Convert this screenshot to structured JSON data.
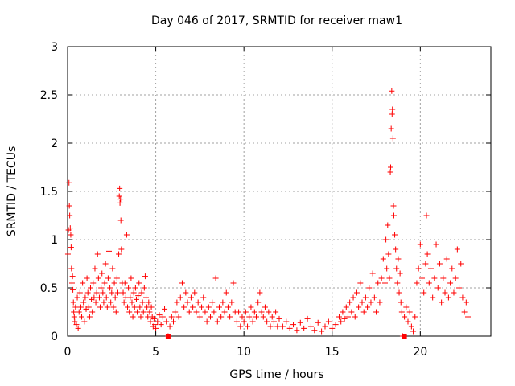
{
  "chart_data": {
    "type": "scatter",
    "title": "Day 046 of 2017, SRMTID for receiver maw1",
    "xlabel": "GPS time / hours",
    "ylabel": "SRMTID / TECUs",
    "xlim": [
      0,
      24
    ],
    "ylim": [
      0,
      3
    ],
    "xticks": [
      0,
      5,
      10,
      15,
      20
    ],
    "yticks": [
      0,
      0.5,
      1,
      1.5,
      2,
      2.5,
      3
    ],
    "ytick_labels": [
      "0",
      "0.5",
      "1",
      "1.5",
      "2",
      "2.5",
      "3"
    ],
    "grid": true,
    "marker": "+",
    "color": "#ff0000",
    "series": [
      {
        "name": "SRMTID",
        "points": [
          [
            0.02,
            0.85
          ],
          [
            0.05,
            1.1
          ],
          [
            0.08,
            1.59
          ],
          [
            0.1,
            1.35
          ],
          [
            0.12,
            1.25
          ],
          [
            0.15,
            1.12
          ],
          [
            0.18,
            1.05
          ],
          [
            0.2,
            0.92
          ],
          [
            0.22,
            0.7
          ],
          [
            0.25,
            0.55
          ],
          [
            0.28,
            0.62
          ],
          [
            0.3,
            0.48
          ],
          [
            0.33,
            0.35
          ],
          [
            0.35,
            0.25
          ],
          [
            0.38,
            0.2
          ],
          [
            0.4,
            0.15
          ],
          [
            0.45,
            0.3
          ],
          [
            0.5,
            0.12
          ],
          [
            0.55,
            0.4
          ],
          [
            0.6,
            0.08
          ],
          [
            0.65,
            0.25
          ],
          [
            0.7,
            0.45
          ],
          [
            0.75,
            0.3
          ],
          [
            0.8,
            0.2
          ],
          [
            0.85,
            0.55
          ],
          [
            0.9,
            0.35
          ],
          [
            0.95,
            0.15
          ],
          [
            1.0,
            0.4
          ],
          [
            1.05,
            0.28
          ],
          [
            1.1,
            0.6
          ],
          [
            1.15,
            0.45
          ],
          [
            1.2,
            0.3
          ],
          [
            1.25,
            0.2
          ],
          [
            1.3,
            0.5
          ],
          [
            1.35,
            0.38
          ],
          [
            1.4,
            0.25
          ],
          [
            1.45,
            0.55
          ],
          [
            1.5,
            0.4
          ],
          [
            1.55,
            0.7
          ],
          [
            1.6,
            0.35
          ],
          [
            1.65,
            0.45
          ],
          [
            1.7,
            0.85
          ],
          [
            1.75,
            0.6
          ],
          [
            1.8,
            0.4
          ],
          [
            1.85,
            0.3
          ],
          [
            1.9,
            0.5
          ],
          [
            1.95,
            0.65
          ],
          [
            2.0,
            0.45
          ],
          [
            2.05,
            0.35
          ],
          [
            2.1,
            0.55
          ],
          [
            2.15,
            0.75
          ],
          [
            2.2,
            0.4
          ],
          [
            2.25,
            0.3
          ],
          [
            2.3,
            0.6
          ],
          [
            2.35,
            0.88
          ],
          [
            2.4,
            0.5
          ],
          [
            2.45,
            0.35
          ],
          [
            2.5,
            0.45
          ],
          [
            2.55,
            0.7
          ],
          [
            2.6,
            0.3
          ],
          [
            2.65,
            0.55
          ],
          [
            2.7,
            0.4
          ],
          [
            2.75,
            0.25
          ],
          [
            2.8,
            0.6
          ],
          [
            2.85,
            0.45
          ],
          [
            2.9,
            0.85
          ],
          [
            2.93,
            1.45
          ],
          [
            2.95,
            1.53
          ],
          [
            2.97,
            1.38
          ],
          [
            3.0,
            1.42
          ],
          [
            3.02,
            1.2
          ],
          [
            3.05,
            0.9
          ],
          [
            3.1,
            0.55
          ],
          [
            3.15,
            0.45
          ],
          [
            3.2,
            0.35
          ],
          [
            3.25,
            0.55
          ],
          [
            3.3,
            0.4
          ],
          [
            3.35,
            1.05
          ],
          [
            3.4,
            0.3
          ],
          [
            3.45,
            0.5
          ],
          [
            3.5,
            0.25
          ],
          [
            3.55,
            0.4
          ],
          [
            3.6,
            0.6
          ],
          [
            3.65,
            0.35
          ],
          [
            3.7,
            0.2
          ],
          [
            3.75,
            0.45
          ],
          [
            3.8,
            0.3
          ],
          [
            3.85,
            0.5
          ],
          [
            3.9,
            0.38
          ],
          [
            3.95,
            0.25
          ],
          [
            4.0,
            0.42
          ],
          [
            4.05,
            0.55
          ],
          [
            4.1,
            0.3
          ],
          [
            4.15,
            0.2
          ],
          [
            4.2,
            0.45
          ],
          [
            4.25,
            0.35
          ],
          [
            4.3,
            0.25
          ],
          [
            4.35,
            0.5
          ],
          [
            4.4,
            0.62
          ],
          [
            4.45,
            0.4
          ],
          [
            4.5,
            0.3
          ],
          [
            4.55,
            0.2
          ],
          [
            4.6,
            0.35
          ],
          [
            4.65,
            0.25
          ],
          [
            4.7,
            0.15
          ],
          [
            4.75,
            0.3
          ],
          [
            4.8,
            0.2
          ],
          [
            4.85,
            0.1
          ],
          [
            4.9,
            0.18
          ],
          [
            4.95,
            0.12
          ],
          [
            5.0,
            0.08
          ],
          [
            5.1,
            0.15
          ],
          [
            5.2,
            0.22
          ],
          [
            5.3,
            0.12
          ],
          [
            5.4,
            0.2
          ],
          [
            5.5,
            0.28
          ],
          [
            5.6,
            0.15
          ],
          [
            5.7,
            0.0
          ],
          [
            5.8,
            0.1
          ],
          [
            5.9,
            0.2
          ],
          [
            6.0,
            0.15
          ],
          [
            6.1,
            0.25
          ],
          [
            6.2,
            0.35
          ],
          [
            6.3,
            0.2
          ],
          [
            6.4,
            0.4
          ],
          [
            6.5,
            0.55
          ],
          [
            6.6,
            0.3
          ],
          [
            6.7,
            0.45
          ],
          [
            6.8,
            0.35
          ],
          [
            6.9,
            0.25
          ],
          [
            7.0,
            0.4
          ],
          [
            7.1,
            0.3
          ],
          [
            7.2,
            0.45
          ],
          [
            7.3,
            0.25
          ],
          [
            7.4,
            0.35
          ],
          [
            7.5,
            0.2
          ],
          [
            7.6,
            0.3
          ],
          [
            7.7,
            0.4
          ],
          [
            7.8,
            0.25
          ],
          [
            7.9,
            0.15
          ],
          [
            8.0,
            0.3
          ],
          [
            8.1,
            0.2
          ],
          [
            8.2,
            0.35
          ],
          [
            8.3,
            0.25
          ],
          [
            8.4,
            0.6
          ],
          [
            8.5,
            0.15
          ],
          [
            8.6,
            0.3
          ],
          [
            8.7,
            0.2
          ],
          [
            8.8,
            0.35
          ],
          [
            8.9,
            0.25
          ],
          [
            9.0,
            0.45
          ],
          [
            9.1,
            0.3
          ],
          [
            9.2,
            0.2
          ],
          [
            9.3,
            0.35
          ],
          [
            9.4,
            0.55
          ],
          [
            9.5,
            0.25
          ],
          [
            9.6,
            0.15
          ],
          [
            9.7,
            0.25
          ],
          [
            9.8,
            0.1
          ],
          [
            9.9,
            0.2
          ],
          [
            10.0,
            0.15
          ],
          [
            10.1,
            0.25
          ],
          [
            10.2,
            0.1
          ],
          [
            10.3,
            0.2
          ],
          [
            10.4,
            0.3
          ],
          [
            10.5,
            0.15
          ],
          [
            10.6,
            0.25
          ],
          [
            10.7,
            0.2
          ],
          [
            10.8,
            0.35
          ],
          [
            10.9,
            0.45
          ],
          [
            11.0,
            0.25
          ],
          [
            11.1,
            0.2
          ],
          [
            11.2,
            0.3
          ],
          [
            11.3,
            0.15
          ],
          [
            11.4,
            0.25
          ],
          [
            11.5,
            0.1
          ],
          [
            11.6,
            0.2
          ],
          [
            11.7,
            0.15
          ],
          [
            11.8,
            0.25
          ],
          [
            11.9,
            0.1
          ],
          [
            12.0,
            0.18
          ],
          [
            12.2,
            0.1
          ],
          [
            12.4,
            0.15
          ],
          [
            12.6,
            0.08
          ],
          [
            12.8,
            0.12
          ],
          [
            13.0,
            0.06
          ],
          [
            13.2,
            0.14
          ],
          [
            13.4,
            0.08
          ],
          [
            13.6,
            0.18
          ],
          [
            13.8,
            0.1
          ],
          [
            14.0,
            0.06
          ],
          [
            14.2,
            0.14
          ],
          [
            14.4,
            0.05
          ],
          [
            14.6,
            0.1
          ],
          [
            14.8,
            0.15
          ],
          [
            15.0,
            0.08
          ],
          [
            15.2,
            0.12
          ],
          [
            15.4,
            0.2
          ],
          [
            15.5,
            0.15
          ],
          [
            15.6,
            0.25
          ],
          [
            15.7,
            0.18
          ],
          [
            15.8,
            0.3
          ],
          [
            15.9,
            0.2
          ],
          [
            16.0,
            0.35
          ],
          [
            16.1,
            0.25
          ],
          [
            16.2,
            0.4
          ],
          [
            16.3,
            0.2
          ],
          [
            16.4,
            0.45
          ],
          [
            16.5,
            0.3
          ],
          [
            16.6,
            0.55
          ],
          [
            16.7,
            0.35
          ],
          [
            16.8,
            0.25
          ],
          [
            16.9,
            0.4
          ],
          [
            17.0,
            0.3
          ],
          [
            17.1,
            0.5
          ],
          [
            17.2,
            0.35
          ],
          [
            17.3,
            0.65
          ],
          [
            17.4,
            0.4
          ],
          [
            17.5,
            0.25
          ],
          [
            17.6,
            0.55
          ],
          [
            17.7,
            0.35
          ],
          [
            17.8,
            0.6
          ],
          [
            17.9,
            0.8
          ],
          [
            18.0,
            0.55
          ],
          [
            18.05,
            1.0
          ],
          [
            18.1,
            0.7
          ],
          [
            18.15,
            1.15
          ],
          [
            18.2,
            0.85
          ],
          [
            18.25,
            0.6
          ],
          [
            18.3,
            1.7
          ],
          [
            18.32,
            1.75
          ],
          [
            18.35,
            2.15
          ],
          [
            18.38,
            2.54
          ],
          [
            18.4,
            2.3
          ],
          [
            18.42,
            2.35
          ],
          [
            18.45,
            2.05
          ],
          [
            18.48,
            1.35
          ],
          [
            18.5,
            1.25
          ],
          [
            18.55,
            1.05
          ],
          [
            18.6,
            0.9
          ],
          [
            18.65,
            0.7
          ],
          [
            18.7,
            0.55
          ],
          [
            18.75,
            0.8
          ],
          [
            18.8,
            0.45
          ],
          [
            18.85,
            0.65
          ],
          [
            18.9,
            0.35
          ],
          [
            18.95,
            0.25
          ],
          [
            19.0,
            0.0
          ],
          [
            19.1,
            0.2
          ],
          [
            19.2,
            0.3
          ],
          [
            19.3,
            0.15
          ],
          [
            19.4,
            0.25
          ],
          [
            19.5,
            0.1
          ],
          [
            19.6,
            0.05
          ],
          [
            19.7,
            0.2
          ],
          [
            19.8,
            0.55
          ],
          [
            19.9,
            0.7
          ],
          [
            20.0,
            0.95
          ],
          [
            20.1,
            0.6
          ],
          [
            20.2,
            0.45
          ],
          [
            20.3,
            0.75
          ],
          [
            20.35,
            1.25
          ],
          [
            20.4,
            0.85
          ],
          [
            20.5,
            0.55
          ],
          [
            20.6,
            0.7
          ],
          [
            20.7,
            0.4
          ],
          [
            20.8,
            0.6
          ],
          [
            20.9,
            0.95
          ],
          [
            21.0,
            0.5
          ],
          [
            21.1,
            0.75
          ],
          [
            21.2,
            0.35
          ],
          [
            21.3,
            0.6
          ],
          [
            21.4,
            0.45
          ],
          [
            21.5,
            0.8
          ],
          [
            21.6,
            0.4
          ],
          [
            21.7,
            0.55
          ],
          [
            21.8,
            0.7
          ],
          [
            21.9,
            0.45
          ],
          [
            22.0,
            0.6
          ],
          [
            22.1,
            0.9
          ],
          [
            22.2,
            0.5
          ],
          [
            22.3,
            0.75
          ],
          [
            22.4,
            0.4
          ],
          [
            22.5,
            0.25
          ],
          [
            22.6,
            0.35
          ],
          [
            22.7,
            0.2
          ]
        ]
      }
    ],
    "markers_on_axis": [
      5.7,
      19.1
    ]
  }
}
